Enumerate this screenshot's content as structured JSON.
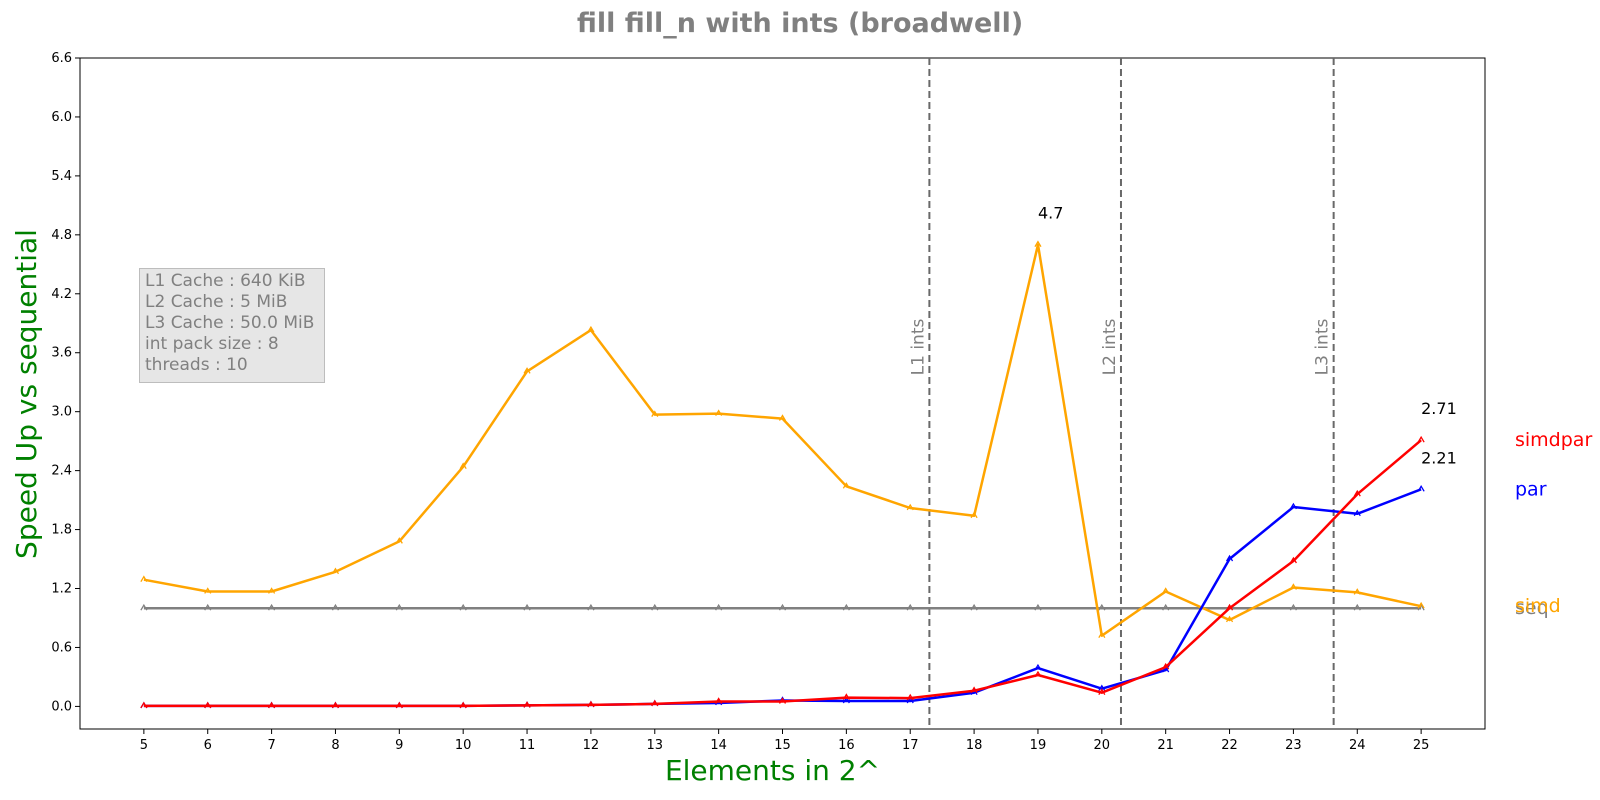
{
  "chart_data": {
    "type": "line",
    "title": "fill fill_n with ints  (broadwell)",
    "xlabel": "Elements in 2^",
    "ylabel": "Speed Up vs sequential",
    "x": [
      5,
      6,
      7,
      8,
      9,
      10,
      11,
      12,
      13,
      14,
      15,
      16,
      17,
      18,
      19,
      20,
      21,
      22,
      23,
      24,
      25
    ],
    "xlim": [
      4,
      26
    ],
    "ylim": [
      -0.23,
      6.6
    ],
    "yticks": [
      "0.0",
      "0.6",
      "1.2",
      "1.8",
      "2.4",
      "3.0",
      "3.6",
      "4.2",
      "4.8",
      "5.4",
      "6.0",
      "6.6"
    ],
    "series": [
      {
        "name": "seq",
        "color": "#808080",
        "values": [
          1,
          1,
          1,
          1,
          1,
          1,
          1,
          1,
          1,
          1,
          1,
          1,
          1,
          1,
          1,
          1,
          1,
          1,
          1,
          1,
          1
        ]
      },
      {
        "name": "simd",
        "color": "#ffa500",
        "values": [
          1.29,
          1.17,
          1.17,
          1.37,
          1.68,
          2.44,
          3.41,
          3.83,
          2.97,
          2.98,
          2.93,
          2.24,
          2.02,
          1.94,
          4.7,
          0.72,
          1.17,
          0.88,
          1.21,
          1.16,
          1.02
        ]
      },
      {
        "name": "par",
        "color": "#0000ff",
        "values": [
          0.005,
          0.005,
          0.005,
          0.005,
          0.005,
          0.005,
          0.01,
          0.015,
          0.025,
          0.035,
          0.06,
          0.055,
          0.055,
          0.14,
          0.39,
          0.18,
          0.37,
          1.5,
          2.03,
          1.96,
          2.21
        ]
      },
      {
        "name": "simdpar",
        "color": "#ff0000",
        "values": [
          0.005,
          0.005,
          0.005,
          0.005,
          0.005,
          0.005,
          0.01,
          0.015,
          0.025,
          0.05,
          0.05,
          0.09,
          0.085,
          0.16,
          0.32,
          0.14,
          0.4,
          1.0,
          1.48,
          2.16,
          2.71
        ]
      }
    ],
    "vlines": [
      {
        "x": 17.3,
        "label": "L1 ints"
      },
      {
        "x": 20.3,
        "label": "L2 ints"
      },
      {
        "x": 23.63,
        "label": "L3 ints"
      }
    ],
    "annotations": [
      {
        "text": "4.7",
        "x": 19,
        "y": 4.7
      },
      {
        "text": "2.71",
        "x": 25,
        "y": 2.71
      },
      {
        "text": "2.21",
        "x": 25,
        "y": 2.21
      }
    ],
    "legend_position": "right of the plot",
    "grid": false
  },
  "info_box": {
    "lines": [
      "L1 Cache : 640 KiB",
      "L2 Cache : 5 MiB",
      "L3 Cache : 50.0 MiB",
      "int pack size : 8",
      "threads : 10"
    ]
  }
}
